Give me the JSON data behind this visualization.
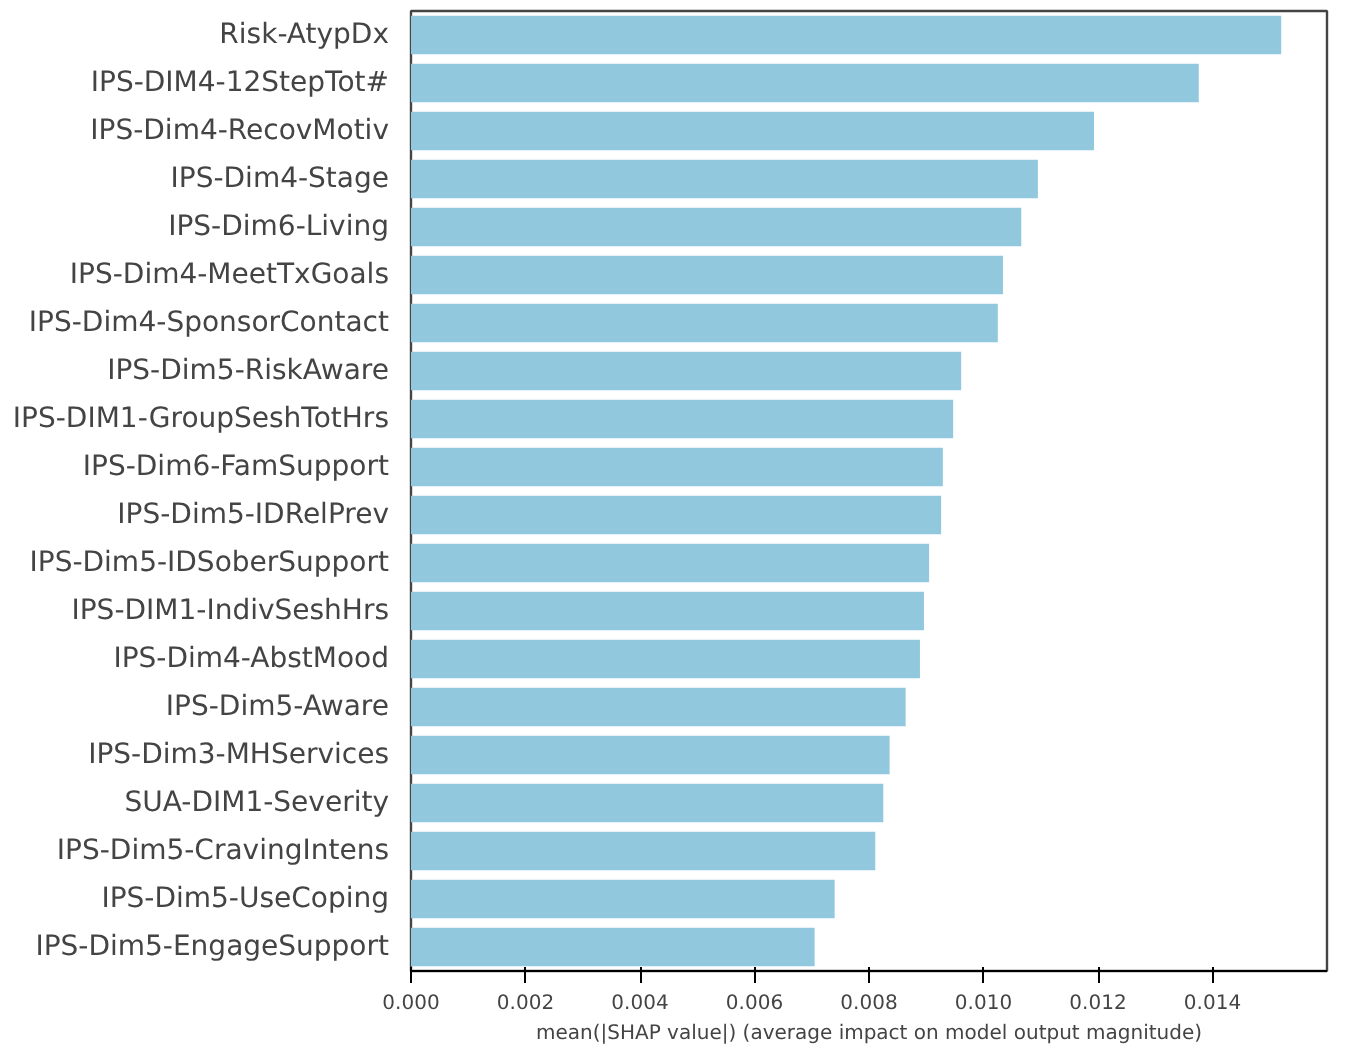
{
  "chart_data": {
    "type": "bar",
    "orientation": "horizontal",
    "xlabel": "mean(|SHAP value|) (average impact on model output magnitude)",
    "categories": [
      "Risk-AtypDx",
      "IPS-DIM4-12StepTot#",
      "IPS-Dim4-RecovMotiv",
      "IPS-Dim4-Stage",
      "IPS-Dim6-Living",
      "IPS-Dim4-MeetTxGoals",
      "IPS-Dim4-SponsorContact",
      "IPS-Dim5-RiskAware",
      "IPS-DIM1-GroupSeshTotHrs",
      "IPS-Dim6-FamSupport",
      "IPS-Dim5-IDRelPrev",
      "IPS-Dim5-IDSoberSupport",
      "IPS-DIM1-IndivSeshHrs",
      "IPS-Dim4-AbstMood",
      "IPS-Dim5-Aware",
      "IPS-Dim3-MHServices",
      "SUA-DIM1-Severity",
      "IPS-Dim5-CravingIntens",
      "IPS-Dim5-UseCoping",
      "IPS-Dim5-EngageSupport"
    ],
    "values": [
      0.0152,
      0.01376,
      0.01193,
      0.01095,
      0.01066,
      0.01034,
      0.01025,
      0.00961,
      0.00947,
      0.00929,
      0.00926,
      0.00905,
      0.00896,
      0.00889,
      0.00864,
      0.00836,
      0.00825,
      0.00811,
      0.0074,
      0.00705
    ],
    "color": "#92c8de",
    "xlim": [
      0,
      0.016
    ],
    "xticks": [
      {
        "value": 0,
        "label": "0.000"
      },
      {
        "value": 0.002,
        "label": "0.002"
      },
      {
        "value": 0.004,
        "label": "0.004"
      },
      {
        "value": 0.006,
        "label": "0.006"
      },
      {
        "value": 0.008,
        "label": "0.008"
      },
      {
        "value": 0.01,
        "label": "0.010"
      },
      {
        "value": 0.012,
        "label": "0.012"
      },
      {
        "value": 0.014,
        "label": "0.014"
      }
    ],
    "grid": false
  }
}
